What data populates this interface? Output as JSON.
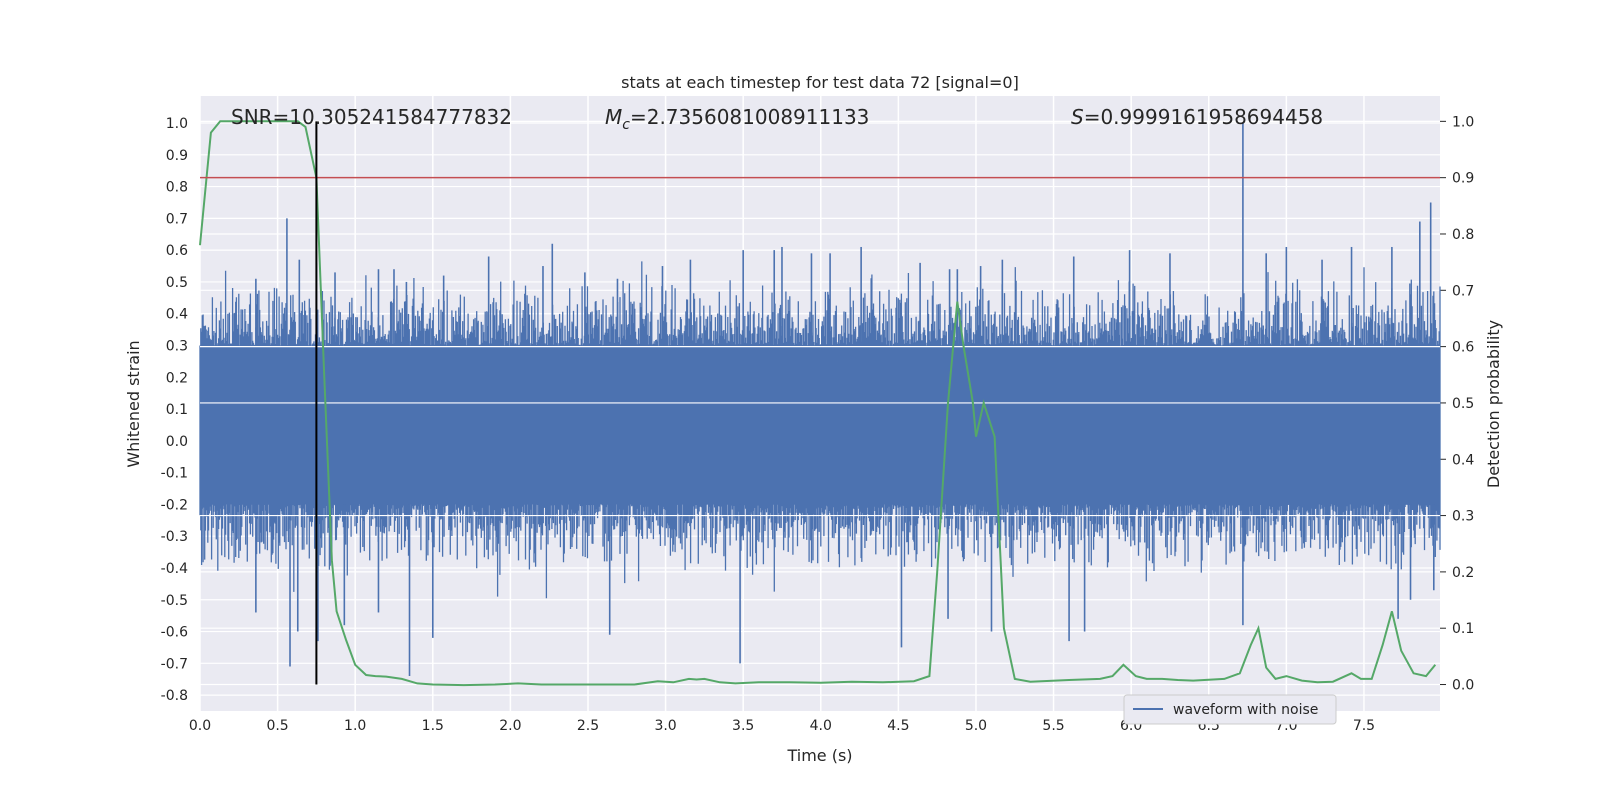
{
  "chart_data": {
    "type": "line",
    "title": "stats at each timestep for test data 72 [signal=0]",
    "xlabel": "Time (s)",
    "ylabel": "Whitened strain",
    "y2label": "Detection probability",
    "xlim": [
      0.0,
      7.99
    ],
    "ylim": [
      -0.85,
      1.085
    ],
    "y2lim": [
      -0.047,
      1.045
    ],
    "x_ticks": [
      "0.0",
      "0.5",
      "1.0",
      "1.5",
      "2.0",
      "2.5",
      "3.0",
      "3.5",
      "4.0",
      "4.5",
      "5.0",
      "5.5",
      "6.0",
      "6.5",
      "7.0",
      "7.5"
    ],
    "y_ticks": [
      "-0.8",
      "-0.7",
      "-0.6",
      "-0.5",
      "-0.4",
      "-0.3",
      "-0.2",
      "-0.1",
      "0.0",
      "0.1",
      "0.2",
      "0.3",
      "0.4",
      "0.5",
      "0.6",
      "0.7",
      "0.8",
      "0.9",
      "1.0"
    ],
    "y2_ticks": [
      "0.0",
      "0.1",
      "0.2",
      "0.3",
      "0.4",
      "0.5",
      "0.6",
      "0.7",
      "0.8",
      "0.9",
      "1.0"
    ],
    "grid": true,
    "legend": {
      "placement": "lower-right",
      "entries": [
        "waveform with noise"
      ]
    },
    "annotations": {
      "snr": "SNR=10.305241584777832",
      "mc": "=2.7356081008911133",
      "s": "=0.9999161958694458"
    },
    "threshold_y2": 0.9,
    "marker_x": 0.75,
    "waveform": {
      "name": "waveform with noise",
      "color": "#4c72b0",
      "dense_band": [
        -0.2,
        0.3
      ],
      "spikes": [
        [
          0.56,
          0.7
        ],
        [
          0.64,
          0.57
        ],
        [
          0.75,
          0.56
        ],
        [
          0.36,
          0.51
        ],
        [
          0.87,
          0.53
        ],
        [
          1.15,
          0.54
        ],
        [
          1.25,
          0.54
        ],
        [
          1.33,
          0.5
        ],
        [
          1.57,
          0.52
        ],
        [
          1.86,
          0.58
        ],
        [
          2.21,
          0.55
        ],
        [
          2.27,
          0.62
        ],
        [
          2.48,
          0.53
        ],
        [
          2.69,
          0.51
        ],
        [
          2.98,
          0.55
        ],
        [
          3.16,
          0.57
        ],
        [
          3.5,
          0.6
        ],
        [
          3.7,
          0.6
        ],
        [
          3.75,
          0.61
        ],
        [
          3.94,
          0.59
        ],
        [
          4.06,
          0.59
        ],
        [
          4.26,
          0.61
        ],
        [
          4.64,
          0.56
        ],
        [
          4.83,
          0.54
        ],
        [
          4.88,
          0.54
        ],
        [
          5.03,
          0.55
        ],
        [
          5.17,
          0.57
        ],
        [
          5.63,
          0.58
        ],
        [
          5.99,
          0.6
        ],
        [
          6.25,
          0.59
        ],
        [
          6.72,
          1.0
        ],
        [
          6.87,
          0.59
        ],
        [
          7.0,
          0.61
        ],
        [
          7.23,
          0.57
        ],
        [
          7.42,
          0.61
        ],
        [
          7.68,
          0.61
        ],
        [
          7.86,
          0.69
        ],
        [
          7.93,
          0.75
        ],
        [
          0.36,
          -0.54
        ],
        [
          0.58,
          -0.71
        ],
        [
          0.63,
          -0.6
        ],
        [
          0.76,
          -0.63
        ],
        [
          0.93,
          -0.58
        ],
        [
          1.15,
          -0.54
        ],
        [
          1.35,
          -0.74
        ],
        [
          1.5,
          -0.62
        ],
        [
          2.64,
          -0.61
        ],
        [
          3.48,
          -0.7
        ],
        [
          4.52,
          -0.65
        ],
        [
          4.82,
          -0.56
        ],
        [
          5.1,
          -0.6
        ],
        [
          5.6,
          -0.63
        ],
        [
          5.7,
          -0.6
        ],
        [
          6.72,
          -0.58
        ],
        [
          7.72,
          -0.56
        ],
        [
          7.8,
          -0.5
        ],
        [
          7.95,
          -0.47
        ]
      ]
    },
    "probability": {
      "name": "detection probability",
      "color": "#55a868",
      "x": [
        0.0,
        0.07,
        0.13,
        0.2,
        0.3,
        0.4,
        0.5,
        0.6,
        0.63,
        0.68,
        0.75,
        0.8,
        0.85,
        0.88,
        0.94,
        1.0,
        1.07,
        1.13,
        1.2,
        1.3,
        1.4,
        1.5,
        1.7,
        1.9,
        2.05,
        2.2,
        2.5,
        2.8,
        2.95,
        3.05,
        3.15,
        3.2,
        3.25,
        3.35,
        3.45,
        3.6,
        3.8,
        4.0,
        4.2,
        4.4,
        4.6,
        4.7,
        4.75,
        4.82,
        4.88,
        4.92,
        4.98,
        5.0,
        5.05,
        5.12,
        5.18,
        5.25,
        5.35,
        5.6,
        5.8,
        5.88,
        5.95,
        6.03,
        6.1,
        6.2,
        6.3,
        6.4,
        6.6,
        6.7,
        6.77,
        6.82,
        6.87,
        6.93,
        7.0,
        7.1,
        7.2,
        7.3,
        7.42,
        7.48,
        7.55,
        7.62,
        7.68,
        7.74,
        7.82,
        7.9,
        7.96
      ],
      "y": [
        0.78,
        0.98,
        1.0,
        1.0,
        1.0,
        1.0,
        1.0,
        1.0,
        1.0,
        0.99,
        0.9,
        0.55,
        0.22,
        0.13,
        0.08,
        0.035,
        0.017,
        0.015,
        0.014,
        0.01,
        0.002,
        0.0,
        -0.001,
        0.0,
        0.002,
        0.0,
        0.0,
        0.0,
        0.006,
        0.004,
        0.01,
        0.009,
        0.01,
        0.004,
        0.002,
        0.004,
        0.004,
        0.003,
        0.005,
        0.004,
        0.006,
        0.015,
        0.2,
        0.5,
        0.68,
        0.6,
        0.5,
        0.44,
        0.5,
        0.44,
        0.1,
        0.01,
        0.005,
        0.008,
        0.01,
        0.015,
        0.035,
        0.015,
        0.01,
        0.01,
        0.008,
        0.007,
        0.01,
        0.02,
        0.07,
        0.1,
        0.03,
        0.01,
        0.015,
        0.007,
        0.004,
        0.005,
        0.02,
        0.01,
        0.01,
        0.07,
        0.13,
        0.06,
        0.02,
        0.015,
        0.035
      ]
    }
  }
}
